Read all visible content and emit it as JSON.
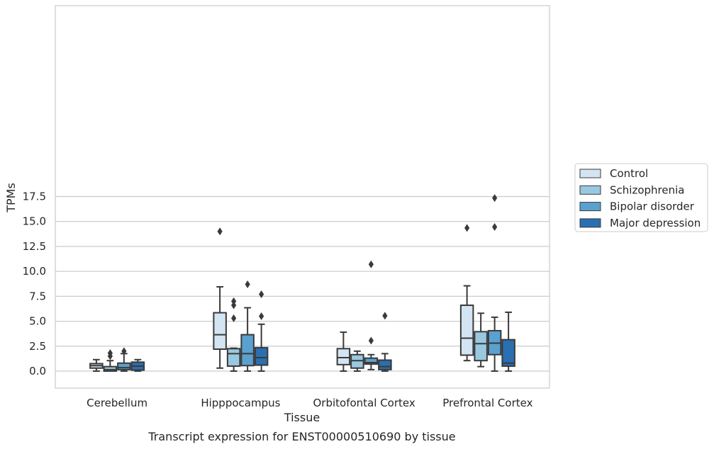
{
  "chart_data": {
    "type": "box",
    "caption": "Transcript expression for ENST00000510690 by tissue",
    "xlabel": "Tissue",
    "ylabel": "TPMs",
    "ylim": [
      -0.8,
      18.2
    ],
    "yticks": [
      0.0,
      2.5,
      5.0,
      7.5,
      10.0,
      12.5,
      15.0,
      17.5
    ],
    "ytick_labels": [
      "0.0",
      "2.5",
      "5.0",
      "7.5",
      "10.0",
      "12.5",
      "15.0",
      "17.5"
    ],
    "grid": true,
    "legend_position": "right",
    "categories": [
      "Cerebellum",
      "Hipppocampus",
      "Orbitofontal Cortex",
      "Prefrontal Cortex"
    ],
    "series": [
      {
        "name": "Control",
        "color": "#d3e4f3",
        "boxes": [
          {
            "whislo": 0.0,
            "q1": 0.3,
            "med": 0.55,
            "q3": 0.75,
            "whishi": 1.15,
            "fliers": []
          },
          {
            "whislo": 0.3,
            "q1": 2.2,
            "med": 3.65,
            "q3": 5.85,
            "whishi": 8.45,
            "fliers": [
              14.0
            ]
          },
          {
            "whislo": 0.0,
            "q1": 0.65,
            "med": 1.35,
            "q3": 2.25,
            "whishi": 3.9,
            "fliers": []
          },
          {
            "whislo": 1.05,
            "q1": 1.6,
            "med": 3.3,
            "q3": 6.6,
            "whishi": 8.55,
            "fliers": [
              14.35
            ]
          }
        ]
      },
      {
        "name": "Schizophrenia",
        "color": "#9ac8e0",
        "boxes": [
          {
            "whislo": 0.0,
            "q1": 0.0,
            "med": 0.15,
            "q3": 0.45,
            "whishi": 1.05,
            "fliers": [
              1.5,
              1.8
            ]
          },
          {
            "whislo": 0.0,
            "q1": 0.5,
            "med": 1.75,
            "q3": 2.25,
            "whishi": 2.3,
            "fliers": [
              5.3,
              6.6,
              7.0
            ]
          },
          {
            "whislo": 0.0,
            "q1": 0.3,
            "med": 1.05,
            "q3": 1.65,
            "whishi": 2.0,
            "fliers": []
          },
          {
            "whislo": 0.45,
            "q1": 1.05,
            "med": 2.75,
            "q3": 3.95,
            "whishi": 5.8,
            "fliers": []
          }
        ]
      },
      {
        "name": "Bipolar disorder",
        "color": "#5aa1cf",
        "boxes": [
          {
            "whislo": 0.0,
            "q1": 0.15,
            "med": 0.35,
            "q3": 0.8,
            "whishi": 1.75,
            "fliers": [
              2.0
            ]
          },
          {
            "whislo": 0.0,
            "q1": 0.55,
            "med": 1.75,
            "q3": 3.65,
            "whishi": 6.35,
            "fliers": [
              8.7
            ]
          },
          {
            "whislo": 0.15,
            "q1": 0.7,
            "med": 0.85,
            "q3": 1.3,
            "whishi": 1.65,
            "fliers": [
              3.05,
              10.7
            ]
          },
          {
            "whislo": 0.0,
            "q1": 1.65,
            "med": 2.8,
            "q3": 4.05,
            "whishi": 5.4,
            "fliers": [
              14.45,
              17.35
            ]
          }
        ]
      },
      {
        "name": "Major depression",
        "color": "#2a6fb0",
        "boxes": [
          {
            "whislo": 0.0,
            "q1": 0.1,
            "med": 0.5,
            "q3": 0.9,
            "whishi": 1.15,
            "fliers": []
          },
          {
            "whislo": 0.0,
            "q1": 0.6,
            "med": 1.35,
            "q3": 2.35,
            "whishi": 4.7,
            "fliers": [
              5.5,
              7.7
            ]
          },
          {
            "whislo": 0.0,
            "q1": 0.15,
            "med": 0.45,
            "q3": 1.1,
            "whishi": 1.75,
            "fliers": [
              5.55
            ]
          },
          {
            "whislo": 0.0,
            "q1": 0.5,
            "med": 0.8,
            "q3": 3.15,
            "whishi": 5.9,
            "fliers": []
          }
        ]
      }
    ]
  }
}
